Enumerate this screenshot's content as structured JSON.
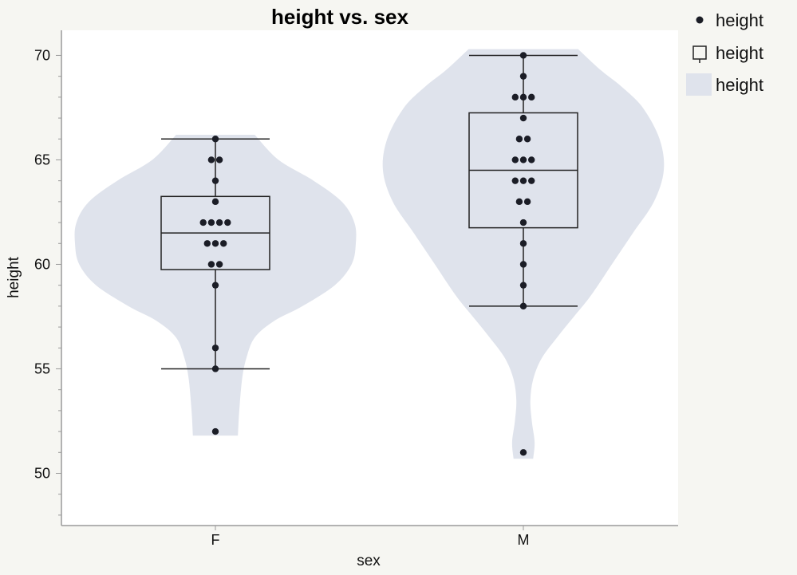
{
  "chart_data": {
    "type": "violin-box-dot",
    "title": "height vs. sex",
    "xlabel": "sex",
    "ylabel": "height",
    "ylim": [
      47.5,
      71.2
    ],
    "yticks": [
      50,
      55,
      60,
      65,
      70
    ],
    "categories": [
      "F",
      "M"
    ],
    "colors": {
      "violin": "#dfe3ec",
      "box": "#222222",
      "dot": "#1b1d26",
      "plot_bg": "#ffffff",
      "page_bg": "#f6f6f2"
    },
    "legend": {
      "placement": "right",
      "items": [
        {
          "symbol": "dot",
          "label": "height"
        },
        {
          "symbol": "box",
          "label": "height"
        },
        {
          "symbol": "violin",
          "label": "height"
        }
      ]
    },
    "groups": [
      {
        "category": "F",
        "values": [
          52,
          55,
          56,
          59,
          60,
          60,
          61,
          61,
          61,
          62,
          62,
          62,
          62,
          63,
          64,
          65,
          65,
          66
        ],
        "box": {
          "whisker_low": 55,
          "q1": 59.75,
          "median": 61.5,
          "q3": 63.25,
          "whisker_high": 66
        },
        "violin": {
          "y_min": 51.8,
          "y_max": 66.2,
          "profile": [
            [
              51.8,
              0.16
            ],
            [
              53,
              0.17
            ],
            [
              54.5,
              0.19
            ],
            [
              55.5,
              0.22
            ],
            [
              56.5,
              0.28
            ],
            [
              57.3,
              0.42
            ],
            [
              58,
              0.62
            ],
            [
              59,
              0.85
            ],
            [
              60,
              0.97
            ],
            [
              61,
              1.0
            ],
            [
              62,
              0.99
            ],
            [
              63,
              0.9
            ],
            [
              64,
              0.7
            ],
            [
              65,
              0.45
            ],
            [
              66.2,
              0.28
            ]
          ]
        }
      },
      {
        "category": "M",
        "values": [
          51,
          58,
          59,
          60,
          61,
          62,
          63,
          63,
          64,
          64,
          64,
          65,
          65,
          65,
          66,
          66,
          67,
          68,
          68,
          68,
          69,
          70
        ],
        "box": {
          "whisker_low": 58,
          "q1": 61.75,
          "median": 64.5,
          "q3": 67.25,
          "whisker_high": 70
        },
        "violin": {
          "y_min": 50.7,
          "y_max": 70.3,
          "profile": [
            [
              50.7,
              0.07
            ],
            [
              51.5,
              0.08
            ],
            [
              52.5,
              0.06
            ],
            [
              53.5,
              0.05
            ],
            [
              54.5,
              0.07
            ],
            [
              55.5,
              0.13
            ],
            [
              56.5,
              0.24
            ],
            [
              57.5,
              0.36
            ],
            [
              58.5,
              0.48
            ],
            [
              60,
              0.63
            ],
            [
              61.5,
              0.78
            ],
            [
              63,
              0.93
            ],
            [
              64.5,
              1.0
            ],
            [
              66,
              0.97
            ],
            [
              67.5,
              0.85
            ],
            [
              68.5,
              0.7
            ],
            [
              69.3,
              0.55
            ],
            [
              70.3,
              0.39
            ]
          ]
        }
      }
    ]
  }
}
